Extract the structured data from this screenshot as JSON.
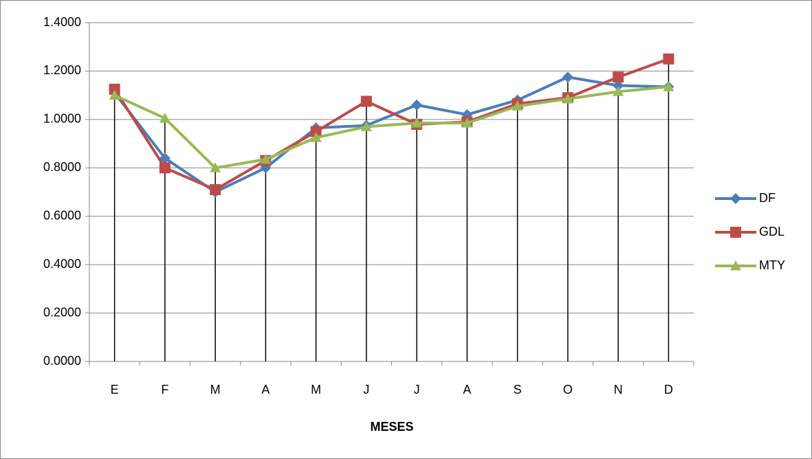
{
  "chart_data": {
    "type": "line",
    "x_label": "MESES",
    "categories": [
      "E",
      "F",
      "M",
      "A",
      "M",
      "J",
      "J",
      "A",
      "S",
      "O",
      "N",
      "D"
    ],
    "series": [
      {
        "name": "DF",
        "color": "#4a7ebb",
        "marker": "diamond",
        "values": [
          1.11,
          0.84,
          0.7,
          0.8,
          0.965,
          0.975,
          1.06,
          1.02,
          1.08,
          1.175,
          1.14,
          1.135
        ]
      },
      {
        "name": "GDL",
        "color": "#be4b48",
        "marker": "square",
        "values": [
          1.125,
          0.8,
          0.71,
          0.83,
          0.95,
          1.075,
          0.98,
          0.99,
          1.065,
          1.09,
          1.175,
          1.25
        ]
      },
      {
        "name": "MTY",
        "color": "#98b954",
        "marker": "triangle",
        "values": [
          1.1,
          1.005,
          0.8,
          0.835,
          0.925,
          0.97,
          0.985,
          0.985,
          1.055,
          1.085,
          1.115,
          1.135
        ]
      }
    ],
    "ylim": [
      0,
      1.4
    ],
    "yticks": [
      {
        "value": 0,
        "label": "0.0000"
      },
      {
        "value": 0.2,
        "label": "0.2000"
      },
      {
        "value": 0.4,
        "label": "0.4000"
      },
      {
        "value": 0.6,
        "label": "0.6000"
      },
      {
        "value": 0.8,
        "label": "0.8000"
      },
      {
        "value": 1.0,
        "label": "1.0000"
      },
      {
        "value": 1.2,
        "label": "1.2000"
      },
      {
        "value": 1.4,
        "label": "1.4000"
      }
    ],
    "grid": true,
    "drop_lines": true,
    "legend": "right"
  }
}
